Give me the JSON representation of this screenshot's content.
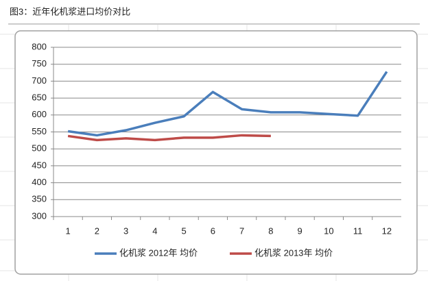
{
  "chart_data": {
    "type": "line",
    "title": "图3：近年化机浆进口均价对比",
    "categories": [
      "1",
      "2",
      "3",
      "4",
      "5",
      "6",
      "7",
      "8",
      "9",
      "10",
      "11",
      "12"
    ],
    "series": [
      {
        "name": "化机浆 2012年 均价",
        "color": "#4a7ebb",
        "values": [
          552,
          540,
          555,
          577,
          596,
          668,
          617,
          608,
          608,
          603,
          598,
          728
        ]
      },
      {
        "name": "化机浆 2013年 均价",
        "color": "#be4b48",
        "values": [
          538,
          526,
          531,
          526,
          533,
          533,
          540,
          538,
          null,
          null,
          null,
          null
        ]
      }
    ],
    "ylim": [
      300,
      800
    ],
    "yticks": [
      300,
      350,
      400,
      450,
      500,
      550,
      600,
      650,
      700,
      750,
      800
    ],
    "grid": true
  }
}
